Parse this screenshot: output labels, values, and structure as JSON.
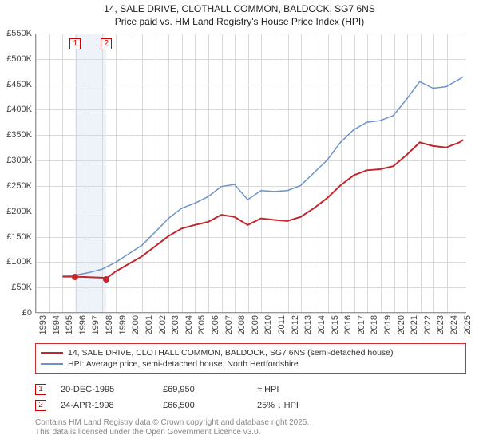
{
  "title": {
    "line1": "14, SALE DRIVE, CLOTHALL COMMON, BALDOCK, SG7 6NS",
    "line2": "Price paid vs. HM Land Registry's House Price Index (HPI)"
  },
  "chart": {
    "type": "line",
    "ylim": [
      0,
      550000
    ],
    "ytick_step": 50000,
    "yticks": [
      "£0",
      "£50K",
      "£100K",
      "£150K",
      "£200K",
      "£250K",
      "£300K",
      "£350K",
      "£400K",
      "£450K",
      "£500K",
      "£550K"
    ],
    "x_start": 1993,
    "x_end": 2025.5,
    "xticks": [
      1993,
      1994,
      1995,
      1996,
      1997,
      1998,
      1999,
      2000,
      2001,
      2002,
      2003,
      2004,
      2005,
      2006,
      2007,
      2008,
      2009,
      2010,
      2011,
      2012,
      2013,
      2014,
      2015,
      2016,
      2017,
      2018,
      2019,
      2020,
      2021,
      2022,
      2023,
      2024,
      2025
    ],
    "gridline_color": "#d9d9d9",
    "background_color": "#ffffff",
    "shade_band": {
      "from": 1995.97,
      "to": 1998.31,
      "color": "#eef3f9"
    },
    "series": [
      {
        "name": "property",
        "label": "14, SALE DRIVE, CLOTHALL COMMON, BALDOCK, SG7 6NS (semi-detached house)",
        "color": "#c1272d",
        "width": 2,
        "data": [
          [
            1995.0,
            70000
          ],
          [
            1995.97,
            69950
          ],
          [
            1997.0,
            69000
          ],
          [
            1998.0,
            68000
          ],
          [
            1998.31,
            66500
          ],
          [
            1999.0,
            80000
          ],
          [
            2000.0,
            95000
          ],
          [
            2001.0,
            110000
          ],
          [
            2002.0,
            130000
          ],
          [
            2003.0,
            150000
          ],
          [
            2004.0,
            165000
          ],
          [
            2005.0,
            172000
          ],
          [
            2006.0,
            178000
          ],
          [
            2007.0,
            192000
          ],
          [
            2008.0,
            188000
          ],
          [
            2009.0,
            172000
          ],
          [
            2010.0,
            185000
          ],
          [
            2011.0,
            182000
          ],
          [
            2012.0,
            180000
          ],
          [
            2013.0,
            188000
          ],
          [
            2014.0,
            205000
          ],
          [
            2015.0,
            225000
          ],
          [
            2016.0,
            250000
          ],
          [
            2017.0,
            270000
          ],
          [
            2018.0,
            280000
          ],
          [
            2019.0,
            282000
          ],
          [
            2020.0,
            288000
          ],
          [
            2021.0,
            310000
          ],
          [
            2022.0,
            335000
          ],
          [
            2023.0,
            328000
          ],
          [
            2024.0,
            325000
          ],
          [
            2025.0,
            335000
          ],
          [
            2025.3,
            340000
          ]
        ]
      },
      {
        "name": "hpi",
        "label": "HPI: Average price, semi-detached house, North Hertfordshire",
        "color": "#6b93c9",
        "width": 1.5,
        "data": [
          [
            1995.0,
            72000
          ],
          [
            1996.0,
            73000
          ],
          [
            1997.0,
            78000
          ],
          [
            1998.0,
            85000
          ],
          [
            1999.0,
            98000
          ],
          [
            2000.0,
            115000
          ],
          [
            2001.0,
            132000
          ],
          [
            2002.0,
            158000
          ],
          [
            2003.0,
            185000
          ],
          [
            2004.0,
            205000
          ],
          [
            2005.0,
            215000
          ],
          [
            2006.0,
            228000
          ],
          [
            2007.0,
            248000
          ],
          [
            2008.0,
            252000
          ],
          [
            2009.0,
            222000
          ],
          [
            2010.0,
            240000
          ],
          [
            2011.0,
            238000
          ],
          [
            2012.0,
            240000
          ],
          [
            2013.0,
            250000
          ],
          [
            2014.0,
            275000
          ],
          [
            2015.0,
            300000
          ],
          [
            2016.0,
            335000
          ],
          [
            2017.0,
            360000
          ],
          [
            2018.0,
            375000
          ],
          [
            2019.0,
            378000
          ],
          [
            2020.0,
            388000
          ],
          [
            2021.0,
            420000
          ],
          [
            2022.0,
            455000
          ],
          [
            2023.0,
            442000
          ],
          [
            2024.0,
            445000
          ],
          [
            2025.0,
            460000
          ],
          [
            2025.3,
            465000
          ]
        ]
      }
    ],
    "sale_markers": [
      {
        "id": "1",
        "year": 1995.97,
        "price": 69950
      },
      {
        "id": "2",
        "year": 1998.31,
        "price": 66500
      }
    ],
    "sale_dot_color": "#c1272d"
  },
  "legend": {
    "rows": [
      {
        "color": "#c1272d",
        "label": "14, SALE DRIVE, CLOTHALL COMMON, BALDOCK, SG7 6NS (semi-detached house)"
      },
      {
        "color": "#6b93c9",
        "label": "HPI: Average price, semi-detached house, North Hertfordshire"
      }
    ]
  },
  "sales_table": {
    "rows": [
      {
        "id": "1",
        "date": "20-DEC-1995",
        "price": "£69,950",
        "hpi": "≈ HPI"
      },
      {
        "id": "2",
        "date": "24-APR-1998",
        "price": "£66,500",
        "hpi": "25% ↓ HPI"
      }
    ]
  },
  "footer": {
    "line1": "Contains HM Land Registry data © Crown copyright and database right 2025.",
    "line2": "This data is licensed under the Open Government Licence v3.0."
  }
}
